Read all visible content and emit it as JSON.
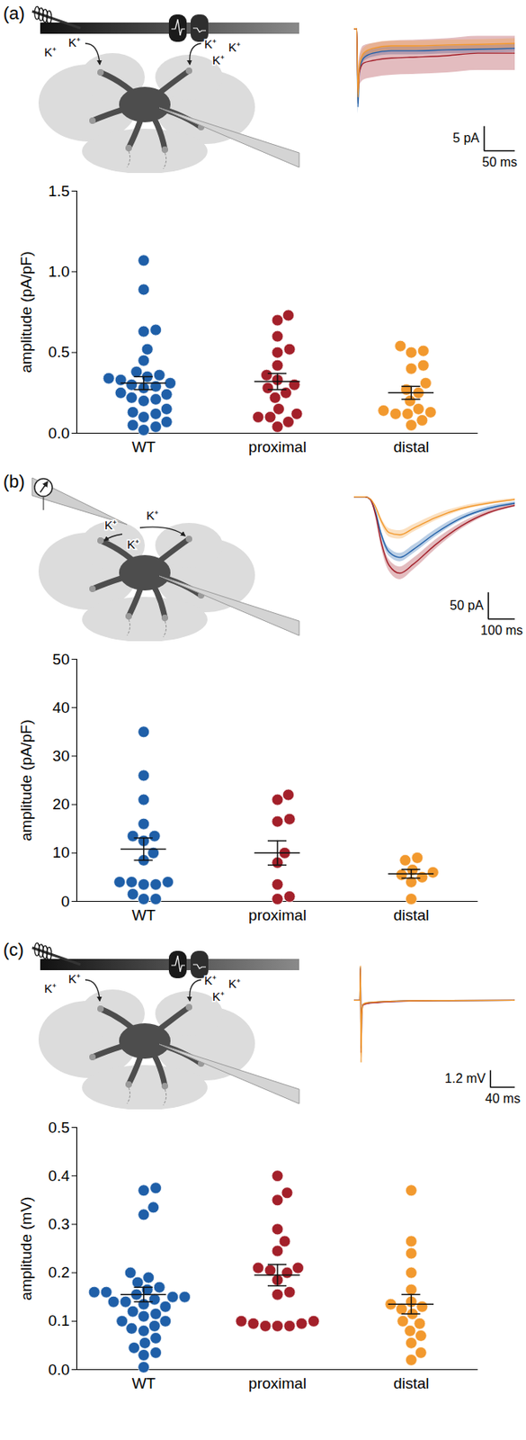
{
  "chart_data": [
    {
      "panel": "(a)",
      "type": "scatter",
      "y_label": "amplitude (pA/pF)",
      "categories": [
        "WT",
        "proximal",
        "distal"
      ],
      "colors": [
        "#1f5fa8",
        "#a3202a",
        "#f2992e"
      ],
      "values": [
        [
          1.07,
          0.89,
          0.64,
          0.63,
          0.52,
          0.45,
          0.38,
          0.36,
          0.35,
          0.34,
          0.33,
          0.31,
          0.3,
          0.29,
          0.28,
          0.25,
          0.24,
          0.22,
          0.21,
          0.2,
          0.15,
          0.13,
          0.12,
          0.1,
          0.07,
          0.05,
          0.04,
          0.02
        ],
        [
          0.73,
          0.7,
          0.6,
          0.52,
          0.5,
          0.42,
          0.36,
          0.33,
          0.3,
          0.28,
          0.25,
          0.22,
          0.15,
          0.12,
          0.1,
          0.1,
          0.07,
          0.04
        ],
        [
          0.54,
          0.51,
          0.5,
          0.42,
          0.4,
          0.31,
          0.27,
          0.25,
          0.2,
          0.15,
          0.14,
          0.13,
          0.12,
          0.12,
          0.08,
          0.05
        ]
      ],
      "mean": [
        0.31,
        0.32,
        0.25
      ],
      "sem": [
        0.04,
        0.05,
        0.04
      ],
      "ylim": [
        0,
        1.5
      ],
      "yticks": [
        {
          "value": 0,
          "label": "0.0"
        },
        0.5,
        {
          "value": 1,
          "label": "1.0"
        },
        1.5
      ],
      "schematic": {
        "kind": "stimulation",
        "ions": [
          "K⁺",
          "K⁺",
          "K⁺",
          "K⁺",
          "K⁺"
        ]
      },
      "inset": {
        "type": "line",
        "x": [
          0,
          4,
          6,
          8,
          15,
          30,
          60,
          100,
          150,
          200,
          260
        ],
        "series": [
          {
            "name": "WT",
            "color": "#1f5fa8",
            "values": [
              0,
              0,
              -16,
              -9,
              -6,
              -5,
              -4.5,
              -4.5,
              -4.3,
              -4.2,
              -4
            ],
            "sem": [
              0,
              0,
              1.5,
              1,
              0.8,
              0.8,
              0.8,
              0.8,
              0.8,
              0.8,
              0.8
            ]
          },
          {
            "name": "proximal",
            "color": "#a3202a",
            "values": [
              0,
              0,
              -13,
              -9,
              -7,
              -6.5,
              -6,
              -5.8,
              -5.5,
              -5,
              -5
            ],
            "sem": [
              0,
              0,
              2.5,
              3,
              3.5,
              3.5,
              3.5,
              3.5,
              3.5,
              3.5,
              3.5
            ]
          },
          {
            "name": "distal",
            "color": "#f2992e",
            "values": [
              0,
              0,
              -14,
              -8,
              -5,
              -4,
              -3.5,
              -3.5,
              -3.3,
              -3.2,
              -3
            ],
            "sem": [
              0,
              0,
              1.5,
              1,
              1,
              1,
              1,
              1,
              1,
              1,
              1
            ]
          }
        ],
        "scale_bar": {
          "y": 5,
          "y_label": "5 pA",
          "x": 50,
          "x_label": "50 ms"
        }
      }
    },
    {
      "panel": "(b)",
      "type": "scatter",
      "y_label": "amplitude (pA/pF)",
      "categories": [
        "WT",
        "proximal",
        "distal"
      ],
      "colors": [
        "#1f5fa8",
        "#a3202a",
        "#f2992e"
      ],
      "values": [
        [
          35,
          26,
          21,
          16,
          13.5,
          13.5,
          12.5,
          10,
          8.5,
          4,
          4,
          4,
          3.5,
          3.5,
          1.5,
          0.5,
          0.5
        ],
        [
          22,
          21,
          17,
          16.5,
          10,
          8,
          3.5,
          1,
          0.5
        ],
        [
          9,
          8.5,
          6.5,
          6,
          5.5,
          5,
          4,
          0.5
        ]
      ],
      "mean": [
        10.8,
        10,
        5.7
      ],
      "sem": [
        2.3,
        2.5,
        0.9
      ],
      "ylim": [
        0,
        50
      ],
      "yticks": [
        0,
        10,
        20,
        30,
        40,
        50
      ],
      "schematic": {
        "kind": "puff",
        "ions": [
          "K⁺",
          "K⁺",
          "K⁺"
        ]
      },
      "inset": {
        "type": "line",
        "x": [
          0,
          40,
          60,
          80,
          100,
          130,
          170,
          220,
          300,
          400,
          500,
          600
        ],
        "series": [
          {
            "name": "WT",
            "color": "#1f5fa8",
            "values": [
              0,
              0,
              -5,
              -30,
              -70,
              -105,
              -115,
              -100,
              -70,
              -40,
              -22,
              -12
            ],
            "sem": [
              0,
              0,
              1,
              4,
              7,
              8,
              8,
              8,
              7,
              5,
              4,
              3
            ]
          },
          {
            "name": "proximal",
            "color": "#a3202a",
            "values": [
              0,
              0,
              -5,
              -35,
              -85,
              -130,
              -145,
              -128,
              -92,
              -55,
              -30,
              -16
            ],
            "sem": [
              0,
              0,
              1,
              5,
              9,
              11,
              12,
              11,
              9,
              6,
              4,
              3
            ]
          },
          {
            "name": "distal",
            "color": "#f2992e",
            "values": [
              0,
              0,
              -4,
              -20,
              -45,
              -68,
              -72,
              -60,
              -40,
              -22,
              -12,
              -5
            ],
            "sem": [
              0,
              0,
              1,
              4,
              6,
              8,
              8,
              7,
              6,
              4,
              3,
              2
            ]
          }
        ],
        "scale_bar": {
          "y": 50,
          "y_label": "50 pA",
          "x": 100,
          "x_label": "100 ms"
        }
      }
    },
    {
      "panel": "(c)",
      "type": "scatter",
      "y_label": "amplitude (mV)",
      "categories": [
        "WT",
        "proximal",
        "distal"
      ],
      "colors": [
        "#1f5fa8",
        "#a3202a",
        "#f2992e"
      ],
      "values": [
        [
          0.375,
          0.37,
          0.335,
          0.32,
          0.2,
          0.19,
          0.18,
          0.17,
          0.165,
          0.16,
          0.16,
          0.155,
          0.15,
          0.15,
          0.145,
          0.14,
          0.14,
          0.135,
          0.13,
          0.12,
          0.115,
          0.11,
          0.1,
          0.1,
          0.09,
          0.085,
          0.08,
          0.065,
          0.055,
          0.045,
          0.035,
          0.03,
          0.005
        ],
        [
          0.4,
          0.365,
          0.35,
          0.29,
          0.265,
          0.245,
          0.21,
          0.21,
          0.205,
          0.2,
          0.185,
          0.16,
          0.155,
          0.1,
          0.1,
          0.095,
          0.095,
          0.09,
          0.09,
          0.09
        ],
        [
          0.37,
          0.265,
          0.24,
          0.2,
          0.165,
          0.14,
          0.135,
          0.13,
          0.125,
          0.115,
          0.1,
          0.095,
          0.08,
          0.07,
          0.055,
          0.035,
          0.02
        ]
      ],
      "mean": [
        0.155,
        0.195,
        0.135
      ],
      "sem": [
        0.015,
        0.022,
        0.02
      ],
      "ylim": [
        0,
        0.5
      ],
      "yticks": [
        {
          "value": 0,
          "label": "0.0"
        },
        0.1,
        0.2,
        0.3,
        0.4,
        0.5
      ],
      "schematic": {
        "kind": "stimulation",
        "ions": [
          "K⁺",
          "K⁺",
          "K⁺",
          "K⁺",
          "K⁺"
        ]
      },
      "inset": {
        "type": "line",
        "x": [
          0,
          9,
          10,
          11,
          12,
          14,
          20,
          40,
          80,
          150,
          260
        ],
        "series": [
          {
            "name": "WT",
            "color": "#1f5fa8",
            "values": [
              0,
              0,
              2.4,
              -3.5,
              -1,
              -0.3,
              -0.2,
              -0.12,
              -0.05,
              -0.02,
              0
            ]
          },
          {
            "name": "proximal",
            "color": "#a3202a",
            "values": [
              0,
              0,
              2.3,
              -3.8,
              -1.1,
              -0.35,
              -0.25,
              -0.15,
              -0.06,
              -0.02,
              0
            ]
          },
          {
            "name": "distal",
            "color": "#f2992e",
            "values": [
              0,
              0,
              2.5,
              -4.5,
              -1.3,
              -0.3,
              -0.18,
              -0.1,
              -0.04,
              -0.02,
              0
            ]
          }
        ],
        "scale_bar": {
          "y": 1.2,
          "y_label": "1.2 mV",
          "x": 40,
          "x_label": "40 ms"
        }
      }
    }
  ]
}
